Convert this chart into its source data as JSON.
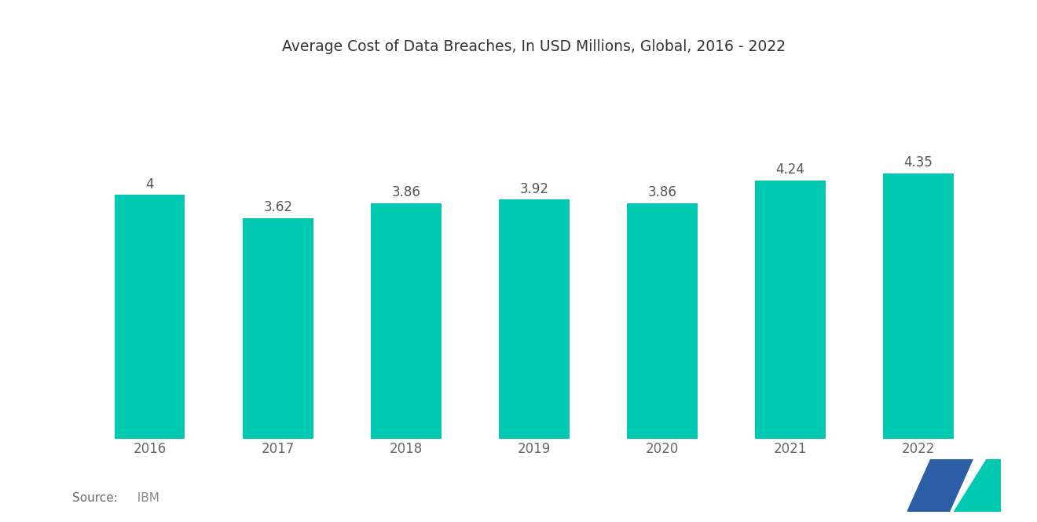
{
  "title": "Average Cost of Data Breaches, In USD Millions, Global, 2016 - 2022",
  "categories": [
    "2016",
    "2017",
    "2018",
    "2019",
    "2020",
    "2021",
    "2022"
  ],
  "values": [
    4.0,
    3.62,
    3.86,
    3.92,
    3.86,
    4.24,
    4.35
  ],
  "bar_color": "#00C9B1",
  "background_color": "#FFFFFF",
  "title_fontsize": 13.5,
  "label_fontsize": 12,
  "tick_fontsize": 12,
  "source_label": "Source:",
  "source_value": "  IBM",
  "ylim": [
    0,
    6.0
  ],
  "bar_width": 0.55,
  "logo_color1": "#2B5EA7",
  "logo_color2": "#00C9B1"
}
